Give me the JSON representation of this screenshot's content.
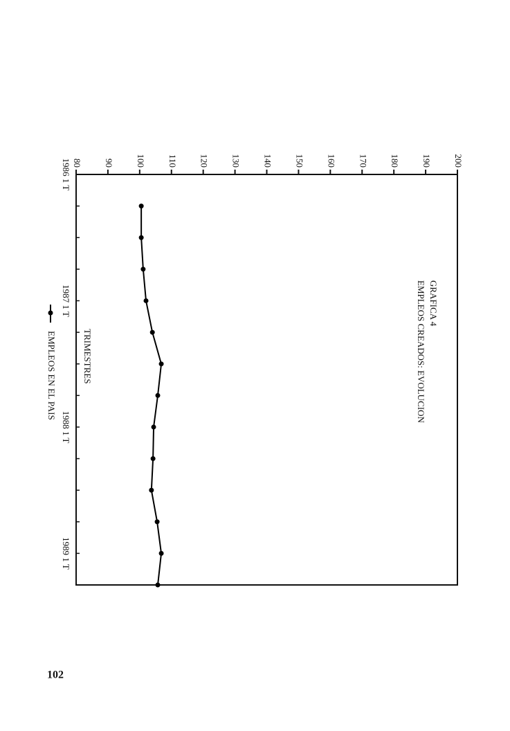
{
  "chart_data": {
    "type": "line",
    "title": "GRAFICA 4",
    "subtitle": "EMPLEOS CREADOS: EVOLUCION",
    "x_label": "TRIMESTRES",
    "categories": [
      "1986 1 T",
      null,
      null,
      null,
      "1987 1 T",
      null,
      null,
      null,
      "1988 1 T",
      null,
      null,
      null,
      "1989 1 T",
      null
    ],
    "series": [
      {
        "name": "EMPLEOS EN EL PAIS",
        "color": "#000000",
        "values": [
          null,
          100.5,
          100.5,
          101.1,
          102,
          104,
          106.8,
          105.7,
          104.4,
          104.2,
          103.7,
          105.5,
          106.8,
          105.7
        ]
      }
    ],
    "ylim": [
      80,
      200
    ],
    "yticks": [
      80,
      90,
      100,
      110,
      120,
      130,
      140,
      150,
      160,
      170,
      180,
      190,
      200
    ],
    "grid": false
  },
  "page_number": "102"
}
